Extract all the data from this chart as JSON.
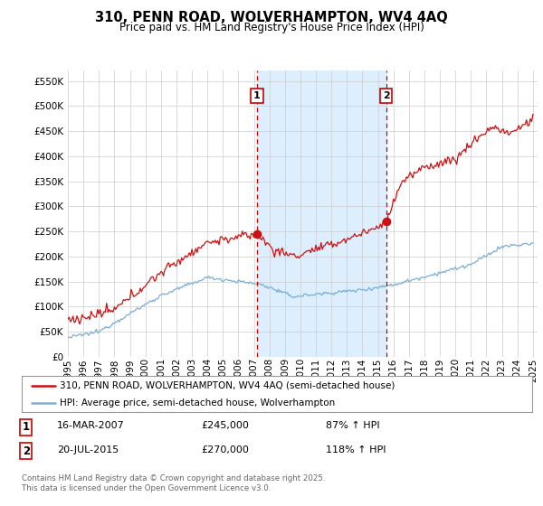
{
  "title": "310, PENN ROAD, WOLVERHAMPTON, WV4 4AQ",
  "subtitle": "Price paid vs. HM Land Registry's House Price Index (HPI)",
  "ylim": [
    0,
    570000
  ],
  "yticks": [
    0,
    50000,
    100000,
    150000,
    200000,
    250000,
    300000,
    350000,
    400000,
    450000,
    500000,
    550000
  ],
  "hpi_color": "#7aaed6",
  "price_color": "#cc1111",
  "vline_color": "#cc0000",
  "shade_color": "#ddeeff",
  "marker1_date": 2007.2,
  "marker2_date": 2015.54,
  "marker1_price": 245000,
  "marker2_price": 270000,
  "annotation1": "1",
  "annotation2": "2",
  "legend_label1": "310, PENN ROAD, WOLVERHAMPTON, WV4 4AQ (semi-detached house)",
  "legend_label2": "HPI: Average price, semi-detached house, Wolverhampton",
  "table_row1": [
    "1",
    "16-MAR-2007",
    "£245,000",
    "87% ↑ HPI"
  ],
  "table_row2": [
    "2",
    "20-JUL-2015",
    "£270,000",
    "118% ↑ HPI"
  ],
  "footer": "Contains HM Land Registry data © Crown copyright and database right 2025.\nThis data is licensed under the Open Government Licence v3.0.",
  "background_color": "#ffffff",
  "grid_color": "#cccccc"
}
